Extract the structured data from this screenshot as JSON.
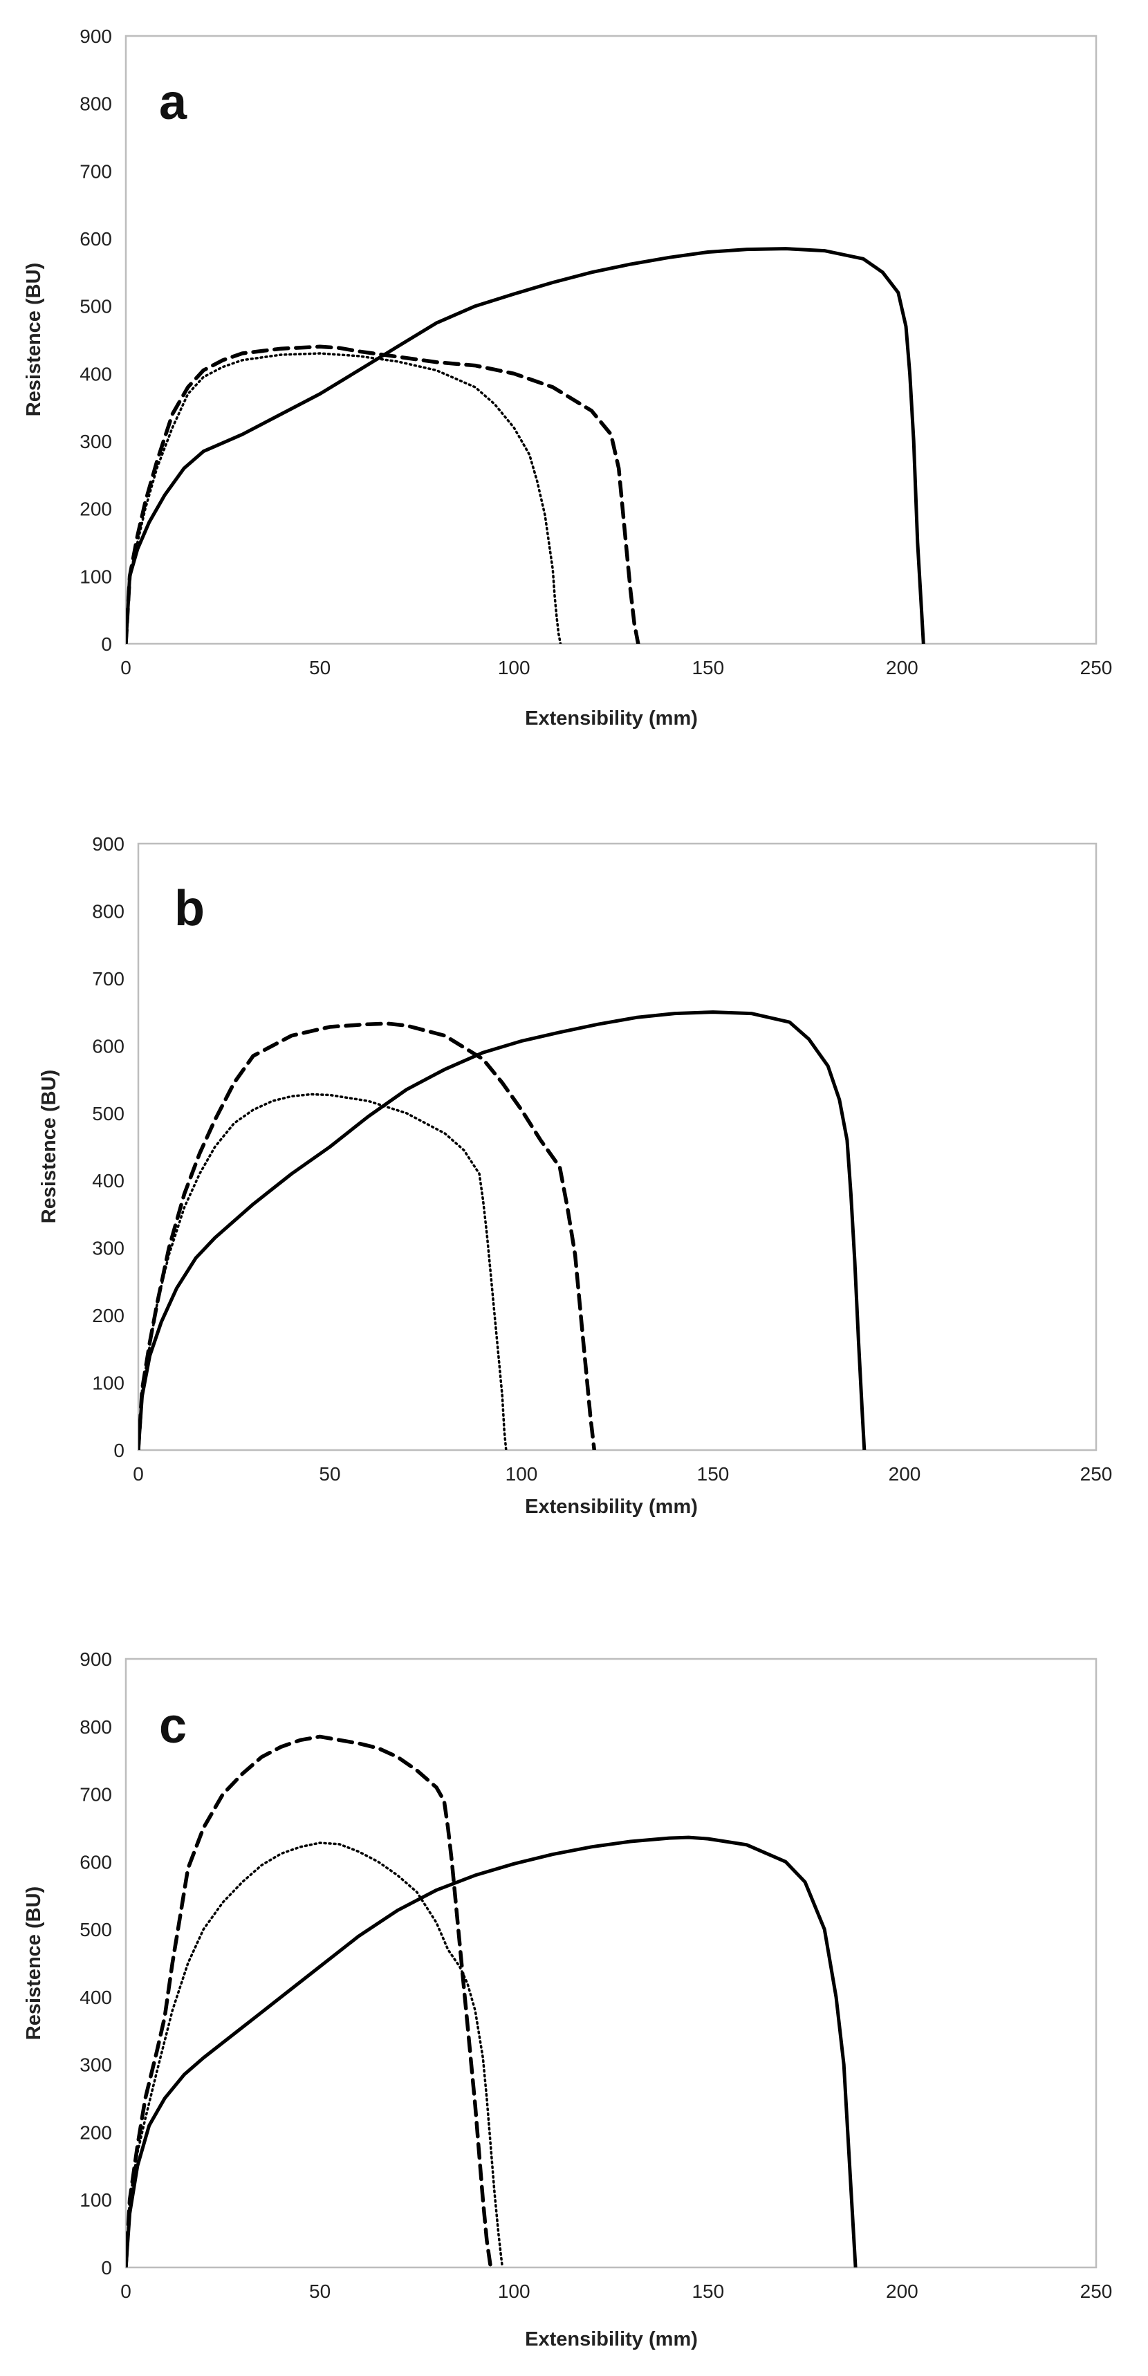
{
  "chart_data": [
    {
      "type": "line",
      "panel_label": "a",
      "xlabel": "Extensibility (mm)",
      "ylabel": "Resistence (BU)",
      "xlim": [
        0,
        250
      ],
      "ylim": [
        0,
        900
      ],
      "x_ticks": [
        "0",
        "50",
        "100",
        "150",
        "200",
        "250"
      ],
      "y_ticks": [
        "0",
        "100",
        "200",
        "300",
        "400",
        "500",
        "600",
        "700",
        "800",
        "900"
      ],
      "series": [
        {
          "name": "solid",
          "style": "solid",
          "x": [
            0,
            1,
            3,
            6,
            10,
            15,
            20,
            30,
            40,
            50,
            60,
            70,
            80,
            90,
            100,
            110,
            120,
            130,
            140,
            150,
            160,
            170,
            180,
            190,
            195,
            199,
            201,
            202,
            203,
            204,
            205,
            205.5
          ],
          "y": [
            0,
            100,
            140,
            180,
            220,
            260,
            285,
            310,
            340,
            370,
            405,
            440,
            475,
            500,
            518,
            535,
            550,
            562,
            572,
            580,
            584,
            585,
            582,
            570,
            550,
            520,
            470,
            400,
            300,
            150,
            50,
            0
          ]
        },
        {
          "name": "dashed",
          "style": "dashed",
          "x": [
            0,
            1,
            3,
            5,
            8,
            12,
            16,
            20,
            25,
            30,
            40,
            50,
            55,
            60,
            70,
            80,
            90,
            100,
            110,
            120,
            125,
            127,
            128,
            129,
            130,
            131,
            132
          ],
          "y": [
            0,
            100,
            160,
            210,
            270,
            340,
            380,
            405,
            420,
            430,
            437,
            440,
            438,
            433,
            425,
            417,
            412,
            400,
            380,
            345,
            310,
            260,
            200,
            140,
            80,
            30,
            0
          ]
        },
        {
          "name": "dotted",
          "style": "dotted",
          "x": [
            0,
            1,
            3,
            5,
            8,
            12,
            16,
            20,
            25,
            30,
            40,
            50,
            60,
            70,
            80,
            90,
            95,
            100,
            104,
            106,
            108,
            109,
            110,
            110.5,
            111,
            111.5,
            112
          ],
          "y": [
            0,
            100,
            150,
            200,
            260,
            320,
            370,
            395,
            410,
            420,
            428,
            430,
            426,
            418,
            405,
            380,
            355,
            320,
            280,
            240,
            190,
            150,
            110,
            70,
            40,
            15,
            0
          ]
        }
      ]
    },
    {
      "type": "line",
      "panel_label": "b",
      "xlabel": "Extensibility (mm)",
      "ylabel": "Resistence (BU)",
      "xlim": [
        0,
        250
      ],
      "ylim": [
        0,
        900
      ],
      "x_ticks": [
        "0",
        "50",
        "100",
        "150",
        "200",
        "250"
      ],
      "y_ticks": [
        "0",
        "100",
        "200",
        "300",
        "400",
        "500",
        "600",
        "700",
        "800",
        "900"
      ],
      "series": [
        {
          "name": "solid",
          "style": "solid",
          "x": [
            0,
            1,
            3,
            6,
            10,
            15,
            20,
            30,
            40,
            50,
            60,
            70,
            80,
            90,
            100,
            110,
            120,
            130,
            140,
            150,
            160,
            170,
            175,
            180,
            183,
            185,
            186,
            187,
            188,
            189,
            189.5
          ],
          "y": [
            0,
            80,
            140,
            190,
            240,
            285,
            315,
            365,
            410,
            450,
            495,
            535,
            565,
            590,
            607,
            620,
            632,
            642,
            648,
            650,
            648,
            635,
            610,
            570,
            520,
            460,
            380,
            280,
            160,
            50,
            0
          ]
        },
        {
          "name": "dashed",
          "style": "dashed",
          "x": [
            0,
            1,
            3,
            5,
            8,
            12,
            16,
            20,
            25,
            30,
            40,
            50,
            60,
            65,
            70,
            80,
            90,
            95,
            100,
            105,
            110,
            112,
            114,
            115,
            116,
            117,
            118,
            119
          ],
          "y": [
            0,
            90,
            160,
            220,
            300,
            380,
            440,
            490,
            545,
            585,
            615,
            628,
            632,
            633,
            630,
            615,
            580,
            545,
            505,
            460,
            420,
            360,
            290,
            230,
            170,
            110,
            50,
            0
          ]
        },
        {
          "name": "dotted",
          "style": "dotted",
          "x": [
            0,
            1,
            3,
            5,
            8,
            12,
            16,
            20,
            25,
            30,
            35,
            40,
            45,
            50,
            60,
            70,
            80,
            85,
            89,
            90,
            91,
            92,
            93,
            94,
            95,
            95.5,
            96
          ],
          "y": [
            0,
            90,
            155,
            220,
            290,
            360,
            410,
            450,
            485,
            505,
            518,
            525,
            528,
            527,
            518,
            500,
            470,
            445,
            410,
            370,
            320,
            260,
            200,
            140,
            80,
            30,
            0
          ]
        }
      ]
    },
    {
      "type": "line",
      "panel_label": "c",
      "xlabel": "Extensibility (mm)",
      "ylabel": "Resistence (BU)",
      "xlim": [
        0,
        250
      ],
      "ylim": [
        0,
        900
      ],
      "x_ticks": [
        "0",
        "50",
        "100",
        "150",
        "200",
        "250"
      ],
      "y_ticks": [
        "0",
        "100",
        "200",
        "300",
        "400",
        "500",
        "600",
        "700",
        "800",
        "900"
      ],
      "series": [
        {
          "name": "solid",
          "style": "solid",
          "x": [
            0,
            1,
            3,
            6,
            10,
            15,
            20,
            30,
            40,
            50,
            60,
            70,
            80,
            90,
            100,
            110,
            120,
            130,
            140,
            145,
            150,
            160,
            170,
            175,
            180,
            183,
            185,
            186,
            187,
            188
          ],
          "y": [
            0,
            80,
            150,
            210,
            250,
            285,
            310,
            355,
            400,
            445,
            490,
            528,
            558,
            580,
            597,
            611,
            622,
            630,
            635,
            636,
            634,
            625,
            600,
            570,
            500,
            400,
            300,
            200,
            100,
            0
          ]
        },
        {
          "name": "dashed",
          "style": "dashed",
          "x": [
            0,
            1,
            3,
            5,
            8,
            10,
            12,
            14,
            16,
            20,
            25,
            30,
            35,
            40,
            45,
            50,
            55,
            60,
            65,
            70,
            75,
            80,
            82,
            83,
            84,
            85,
            86,
            87,
            88,
            89,
            90,
            91,
            92,
            93,
            94
          ],
          "y": [
            0,
            100,
            180,
            250,
            320,
            370,
            450,
            520,
            590,
            650,
            700,
            730,
            755,
            770,
            780,
            785,
            780,
            775,
            768,
            755,
            735,
            710,
            690,
            650,
            600,
            540,
            480,
            420,
            360,
            300,
            240,
            170,
            100,
            40,
            0
          ]
        },
        {
          "name": "dotted",
          "style": "dotted",
          "x": [
            0,
            1,
            3,
            5,
            8,
            12,
            16,
            20,
            25,
            30,
            35,
            40,
            45,
            50,
            55,
            60,
            65,
            70,
            75,
            80,
            83,
            86,
            88,
            90,
            92,
            93,
            94,
            95,
            96,
            97
          ],
          "y": [
            0,
            100,
            170,
            220,
            290,
            380,
            450,
            500,
            540,
            570,
            595,
            612,
            622,
            628,
            626,
            615,
            600,
            580,
            555,
            510,
            470,
            445,
            420,
            380,
            310,
            250,
            180,
            110,
            50,
            0
          ]
        }
      ]
    }
  ]
}
